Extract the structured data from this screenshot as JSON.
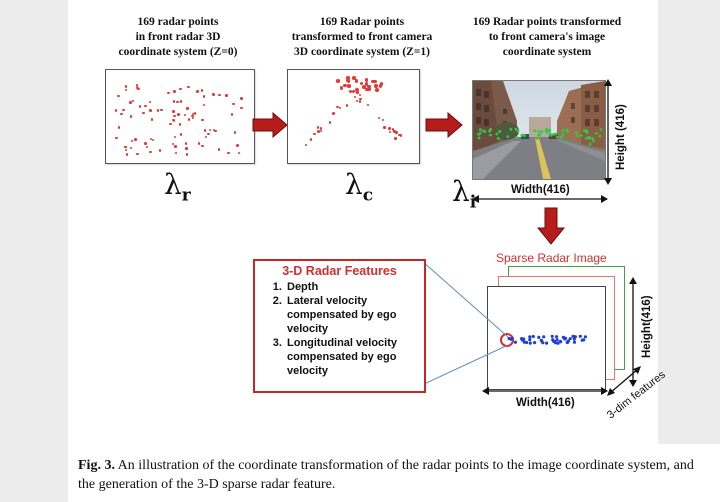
{
  "step1": {
    "title": "169 radar points\nin front radar  3D\ncoordinate system  (Z=0)",
    "symbol": "λ",
    "subscript": "r"
  },
  "step2": {
    "title": "169 Radar points\ntransformed to front camera\n3D coordinate system (Z=1)",
    "symbol": "λ",
    "subscript": "c"
  },
  "step3": {
    "title": "169 Radar points  transformed\nto front camera's image\ncoordinate system",
    "symbol": "λ",
    "subscript": "i",
    "width_label": "Width(416)",
    "height_label": "Height (416)"
  },
  "features": {
    "title": "3-D Radar Features",
    "items": [
      "Depth",
      "Lateral velocity compensated by ego velocity",
      "Longitudinal velocity compensated by ego velocity"
    ]
  },
  "sparse": {
    "title": "Sparse Radar Image",
    "width_label": "Width(416)",
    "height_label": "Height(416)",
    "depth_label": "3-dim features"
  },
  "caption": {
    "fig_label": "Fig. 3.",
    "text": " An illustration of the coordinate transformation of the radar points to the image coordinate system, and the generation of the 3-D sparse radar feature."
  },
  "colors": {
    "arrow": "#b71c1c",
    "radar_point": "#e53935",
    "projected_point": "#2ecc40",
    "feature_point": "#1e3fd6",
    "highlight": "#d32f2f"
  }
}
